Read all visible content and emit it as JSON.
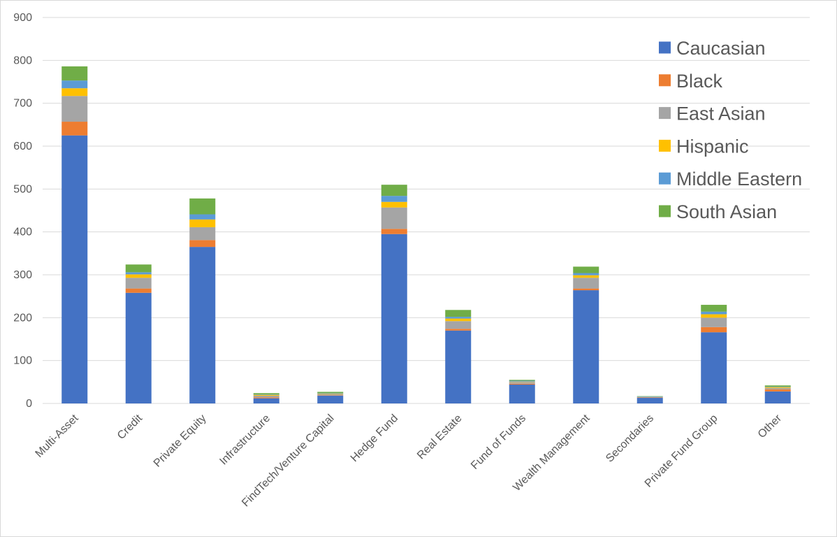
{
  "chart_data": {
    "type": "bar",
    "stacked": true,
    "title": "",
    "xlabel": "",
    "ylabel": "",
    "ylim": [
      0,
      900
    ],
    "yticks": [
      0,
      100,
      200,
      300,
      400,
      500,
      600,
      700,
      800,
      900
    ],
    "grid": true,
    "legend_position": "top-right",
    "categories": [
      "Multi-Asset",
      "Credit",
      "Private Equity",
      "Infrastructure",
      "FindTech/Venture Capital",
      "Hedge Fund",
      "Real Estate",
      "Fund of Funds",
      "Wealth Management",
      "Secondaries",
      "Private Fund Group",
      "Other"
    ],
    "series": [
      {
        "name": "Caucasian",
        "color": "#4472c4",
        "values": [
          625,
          258,
          365,
          12,
          18,
          395,
          170,
          44,
          264,
          13,
          166,
          28
        ]
      },
      {
        "name": "Black",
        "color": "#ed7d31",
        "values": [
          32,
          10,
          16,
          2,
          1,
          12,
          4,
          2,
          4,
          1,
          12,
          5
        ]
      },
      {
        "name": "East Asian",
        "color": "#a5a5a5",
        "values": [
          60,
          25,
          30,
          4,
          3,
          50,
          18,
          4,
          25,
          1,
          22,
          3
        ]
      },
      {
        "name": "Hispanic",
        "color": "#ffc000",
        "values": [
          18,
          8,
          18,
          2,
          1,
          13,
          6,
          1,
          6,
          0,
          8,
          2
        ]
      },
      {
        "name": "Middle Eastern",
        "color": "#5b9bd5",
        "values": [
          18,
          5,
          12,
          1,
          1,
          14,
          4,
          2,
          5,
          1,
          6,
          1
        ]
      },
      {
        "name": "South Asian",
        "color": "#70ad47",
        "values": [
          33,
          18,
          37,
          3,
          3,
          26,
          16,
          2,
          15,
          1,
          16,
          3
        ]
      }
    ]
  }
}
